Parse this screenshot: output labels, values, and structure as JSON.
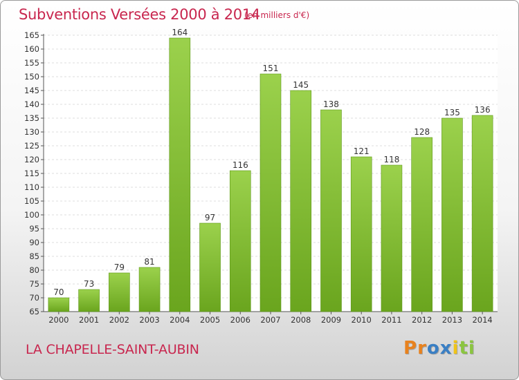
{
  "chart_data": {
    "type": "bar",
    "title": "Subventions Versées 2000 à 2014",
    "unit_label": "(en milliers d'€)",
    "categories": [
      "2000",
      "2001",
      "2002",
      "2003",
      "2004",
      "2005",
      "2006",
      "2007",
      "2008",
      "2009",
      "2010",
      "2011",
      "2012",
      "2013",
      "2014"
    ],
    "values": [
      70,
      73,
      79,
      81,
      164,
      97,
      116,
      151,
      145,
      138,
      121,
      118,
      128,
      135,
      136
    ],
    "ylim": [
      65,
      165
    ],
    "yticks": [
      65,
      70,
      75,
      80,
      85,
      90,
      95,
      100,
      105,
      110,
      115,
      120,
      125,
      130,
      135,
      140,
      145,
      150,
      155,
      160,
      165
    ],
    "grid": true,
    "bar_color": "#8bc540"
  },
  "commune": "LA CHAPELLE-SAINT-AUBIN",
  "logo": {
    "letters": [
      "P",
      "r",
      "o",
      "x",
      "i",
      "t",
      "i"
    ],
    "colors": [
      "#e8821e",
      "#e8821e",
      "#3a7fc4",
      "#3a7fc4",
      "#f0c419",
      "#8bc540",
      "#8bc540"
    ]
  }
}
